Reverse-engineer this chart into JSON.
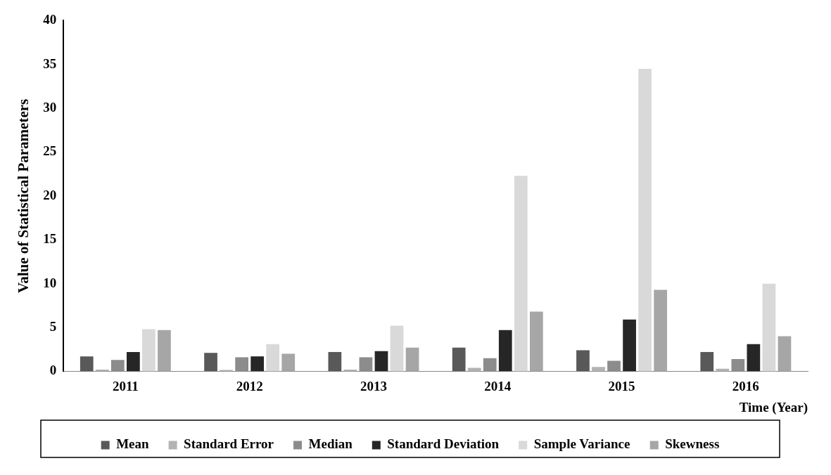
{
  "chart_data": {
    "type": "bar",
    "xlabel": "Time (Year)",
    "ylabel": "Value of Statistical Parameters",
    "categories": [
      "2011",
      "2012",
      "2013",
      "2014",
      "2015",
      "2016"
    ],
    "series": [
      {
        "name": "Mean",
        "color": "#595959",
        "values": [
          1.7,
          2.1,
          2.2,
          2.7,
          2.4,
          2.2
        ]
      },
      {
        "name": "Standard Error",
        "color": "#b3b3b3",
        "values": [
          0.2,
          0.15,
          0.2,
          0.4,
          0.5,
          0.3
        ]
      },
      {
        "name": "Median",
        "color": "#8c8c8c",
        "values": [
          1.3,
          1.6,
          1.6,
          1.5,
          1.2,
          1.4
        ]
      },
      {
        "name": "Standard Deviation",
        "color": "#262626",
        "values": [
          2.2,
          1.7,
          2.3,
          4.7,
          5.9,
          3.1
        ]
      },
      {
        "name": "Sample Variance",
        "color": "#d9d9d9",
        "values": [
          4.8,
          3.1,
          5.2,
          22.3,
          34.5,
          10.0
        ]
      },
      {
        "name": "Skewness",
        "color": "#a6a6a6",
        "values": [
          4.7,
          2.0,
          2.7,
          6.8,
          9.3,
          4.0
        ]
      }
    ],
    "ylim": [
      0,
      40
    ],
    "yticks": [
      0,
      5,
      10,
      15,
      20,
      25,
      30,
      35,
      40
    ],
    "grid": false,
    "legend": "bottom"
  }
}
